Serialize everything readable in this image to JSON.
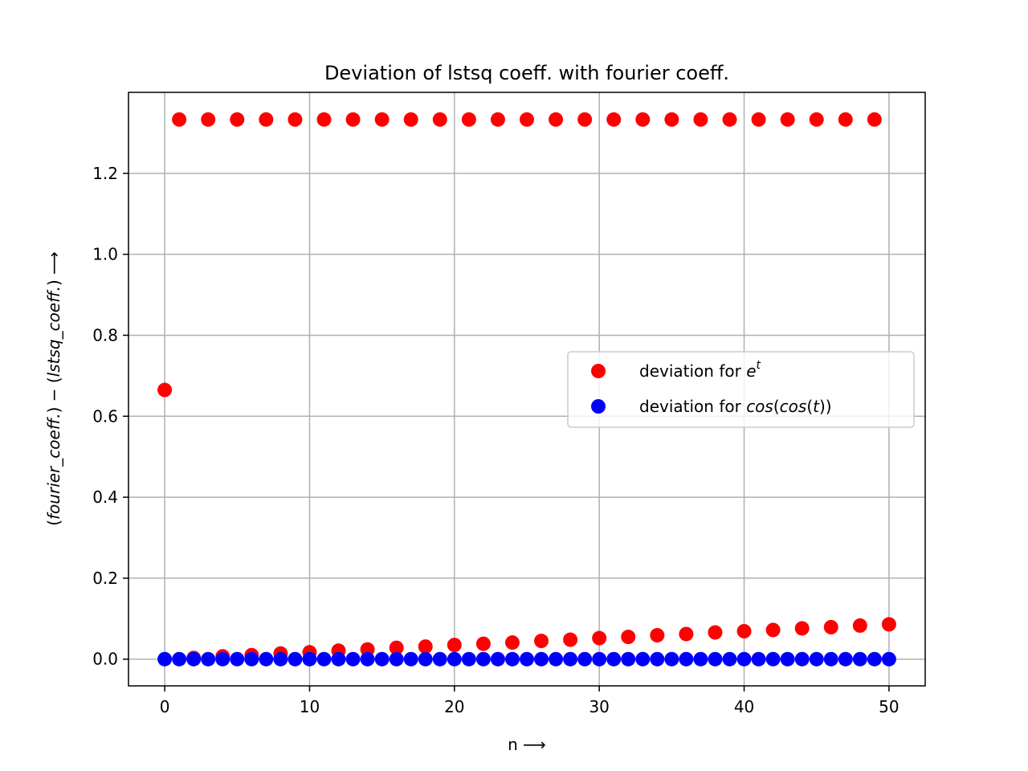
{
  "chart_data": {
    "type": "scatter",
    "title": "Deviation of lstsq coeff. with fourier coeff.",
    "xlabel": "n ⟶",
    "ylabel_parts": [
      "(",
      "fourier_coeff.",
      ") − (",
      "lstsq_coeff.",
      ") ⟶"
    ],
    "xlim": [
      -2.5,
      52.5
    ],
    "ylim": [
      -0.066,
      1.4
    ],
    "xticks": [
      0,
      10,
      20,
      30,
      40,
      50
    ],
    "yticks": [
      0.0,
      0.2,
      0.4,
      0.6,
      0.8,
      1.0,
      1.2
    ],
    "ytick_labels": [
      "0.0",
      "0.2",
      "0.4",
      "0.6",
      "0.8",
      "1.0",
      "1.2"
    ],
    "grid": true,
    "legend_position": "center-right",
    "series": [
      {
        "name": "deviation for e^t",
        "legend_parts": [
          "deviation for ",
          "e",
          "t"
        ],
        "color": "#ff0000",
        "x": [
          0,
          1,
          2,
          3,
          4,
          5,
          6,
          7,
          8,
          9,
          10,
          11,
          12,
          13,
          14,
          15,
          16,
          17,
          18,
          19,
          20,
          21,
          22,
          23,
          24,
          25,
          26,
          27,
          28,
          29,
          30,
          31,
          32,
          33,
          34,
          35,
          36,
          37,
          38,
          39,
          40,
          41,
          42,
          43,
          44,
          45,
          46,
          47,
          48,
          49,
          50
        ],
        "y": [
          0.665,
          1.333,
          0.003,
          1.333,
          0.007,
          1.333,
          0.01,
          1.333,
          0.014,
          1.333,
          0.017,
          1.333,
          0.021,
          1.333,
          0.024,
          1.333,
          0.028,
          1.333,
          0.031,
          1.333,
          0.035,
          1.333,
          0.038,
          1.333,
          0.041,
          1.333,
          0.045,
          1.333,
          0.048,
          1.333,
          0.052,
          1.333,
          0.055,
          1.333,
          0.059,
          1.333,
          0.062,
          1.333,
          0.066,
          1.333,
          0.069,
          1.333,
          0.072,
          1.333,
          0.076,
          1.333,
          0.079,
          1.333,
          0.083,
          1.333,
          0.086
        ]
      },
      {
        "name": "deviation for cos(cos(t))",
        "legend_parts": [
          "deviation for ",
          "cos",
          "(",
          "cos",
          "(",
          "t",
          "))"
        ],
        "color": "#0000ff",
        "x": [
          0,
          1,
          2,
          3,
          4,
          5,
          6,
          7,
          8,
          9,
          10,
          11,
          12,
          13,
          14,
          15,
          16,
          17,
          18,
          19,
          20,
          21,
          22,
          23,
          24,
          25,
          26,
          27,
          28,
          29,
          30,
          31,
          32,
          33,
          34,
          35,
          36,
          37,
          38,
          39,
          40,
          41,
          42,
          43,
          44,
          45,
          46,
          47,
          48,
          49,
          50
        ],
        "y": [
          0,
          0,
          0,
          0,
          0,
          0,
          0,
          0,
          0,
          0,
          0,
          0,
          0,
          0,
          0,
          0,
          0,
          0,
          0,
          0,
          0,
          0,
          0,
          0,
          0,
          0,
          0,
          0,
          0,
          0,
          0,
          0,
          0,
          0,
          0,
          0,
          0,
          0,
          0,
          0,
          0,
          0,
          0,
          0,
          0,
          0,
          0,
          0,
          0,
          0,
          0
        ]
      }
    ]
  }
}
